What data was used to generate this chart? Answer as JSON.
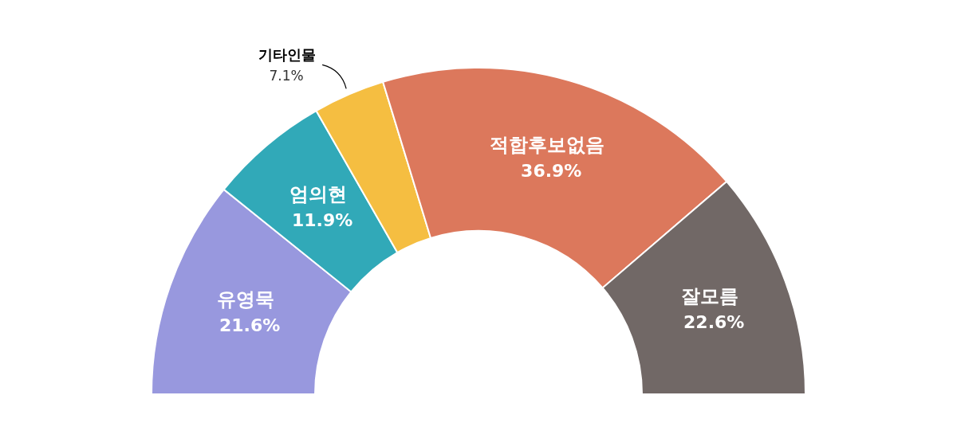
{
  "chart_data": {
    "type": "donut",
    "categories": [
      "유영묵",
      "엄의현",
      "기타인물",
      "적합후보없음",
      "잘모름"
    ],
    "values": [
      21.6,
      11.9,
      7.1,
      36.9,
      22.6
    ],
    "value_labels": [
      "21.6%",
      "11.9%",
      "7.1%",
      "36.9%",
      "22.6%"
    ],
    "colors": [
      "#9898de",
      "#31a9b8",
      "#f5be41",
      "#dc785c",
      "#716866"
    ]
  }
}
